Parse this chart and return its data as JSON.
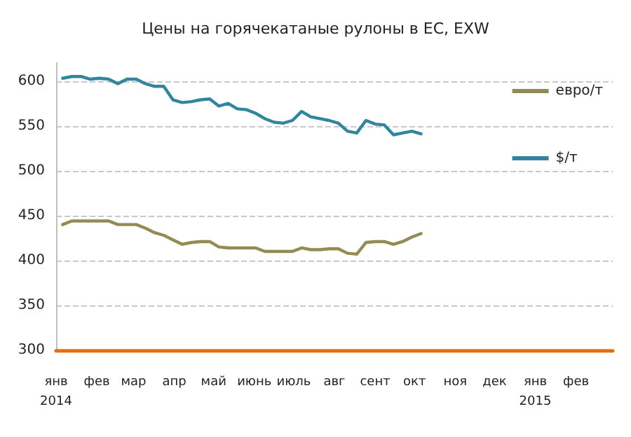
{
  "chart_data": {
    "type": "line",
    "title": "Цены на горячекатаные рулоны в ЕС, EXW",
    "x": [
      "2014-01-06",
      "2014-01-13",
      "2014-01-20",
      "2014-01-27",
      "2014-02-03",
      "2014-02-10",
      "2014-02-17",
      "2014-02-24",
      "2014-03-03",
      "2014-03-10",
      "2014-03-17",
      "2014-03-24",
      "2014-03-31",
      "2014-04-07",
      "2014-04-14",
      "2014-04-21",
      "2014-04-28",
      "2014-05-05",
      "2014-05-12",
      "2014-05-19",
      "2014-05-26",
      "2014-06-02",
      "2014-06-09",
      "2014-06-16",
      "2014-06-23",
      "2014-06-30",
      "2014-07-07",
      "2014-07-14",
      "2014-07-21",
      "2014-07-28",
      "2014-08-04",
      "2014-08-11",
      "2014-08-18",
      "2014-08-25",
      "2014-09-01",
      "2014-09-08",
      "2014-09-15",
      "2014-09-22",
      "2014-09-29",
      "2014-10-06"
    ],
    "series": [
      {
        "name": "евро/т",
        "color": "#948a54",
        "values": [
          440,
          444,
          444,
          444,
          444,
          444,
          440,
          440,
          440,
          436,
          431,
          428,
          423,
          418,
          420,
          421,
          421,
          415,
          414,
          414,
          414,
          414,
          410,
          410,
          410,
          410,
          414,
          412,
          412,
          413,
          413,
          408,
          407,
          420,
          421,
          421,
          418,
          421,
          426,
          430
        ]
      },
      {
        "name": "$/т",
        "color": "#31859c",
        "values": [
          603,
          605,
          605,
          602,
          603,
          602,
          597,
          602,
          602,
          597,
          594,
          594,
          579,
          576,
          577,
          579,
          580,
          572,
          575,
          569,
          568,
          564,
          558,
          554,
          553,
          556,
          566,
          560,
          558,
          556,
          553,
          544,
          542,
          556,
          552,
          551,
          540,
          542,
          544,
          541
        ]
      }
    ],
    "xlim": [
      "2014-01-01",
      "2015-03-01"
    ],
    "xticks": [
      {
        "value": "2014-01-01",
        "label": "янв\n2014"
      },
      {
        "value": "2014-02-01",
        "label": "фев"
      },
      {
        "value": "2014-03-01",
        "label": "мар"
      },
      {
        "value": "2014-04-01",
        "label": "апр"
      },
      {
        "value": "2014-05-01",
        "label": "май"
      },
      {
        "value": "2014-06-01",
        "label": "июнь"
      },
      {
        "value": "2014-07-01",
        "label": "июль"
      },
      {
        "value": "2014-08-01",
        "label": "авг"
      },
      {
        "value": "2014-09-01",
        "label": "сент"
      },
      {
        "value": "2014-10-01",
        "label": "окт"
      },
      {
        "value": "2014-11-01",
        "label": "ноя"
      },
      {
        "value": "2014-12-01",
        "label": "дек"
      },
      {
        "value": "2015-01-01",
        "label": "янв\n2015"
      },
      {
        "value": "2015-02-01",
        "label": "фев"
      }
    ],
    "ylim": [
      300,
      620
    ],
    "yticks": [
      300,
      350,
      400,
      450,
      500,
      550,
      600
    ],
    "grid": "y",
    "legend": "top right",
    "marker": "none",
    "line_style": "solid"
  }
}
